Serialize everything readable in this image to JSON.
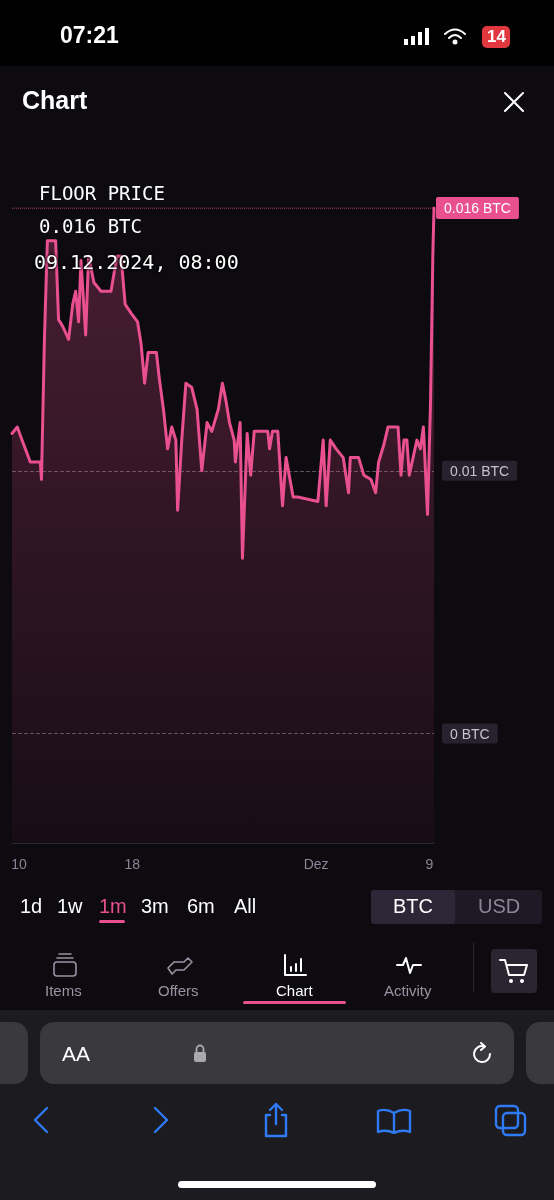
{
  "chart_data": {
    "type": "area",
    "title": "FLOOR PRICE",
    "subtitle": "0.016 BTC",
    "annotations": [
      "07:21",
      "14",
      "Chart",
      "09.12.2024, 08:00",
      "1d",
      "1w",
      "1m",
      "3m",
      "6m",
      "All",
      "BTC",
      "USD",
      "Items",
      "Offers",
      "Chart",
      "Activity",
      "AA"
    ],
    "x": [
      "2024-11-09T12:00",
      "2024-11-09T21:00",
      "2024-11-10T05:00",
      "2024-11-10T19:00",
      "2024-11-11T12:00",
      "2024-11-11T14:00",
      "2024-11-11T19:00",
      "2024-11-12T00:00",
      "2024-11-12T14:00",
      "2024-11-12T19:00",
      "2024-11-13T02:00",
      "2024-11-13T12:00",
      "2024-11-13T19:00",
      "2024-11-14T00:00",
      "2024-11-14T05:00",
      "2024-11-14T09:00",
      "2024-11-14T17:00",
      "2024-11-14T22:00",
      "2024-11-15T07:00",
      "2024-11-15T19:00",
      "2024-11-16T12:00",
      "2024-11-16T22:00",
      "2024-11-17T05:00",
      "2024-11-17T12:00",
      "2024-11-17T22:00",
      "2024-11-18T09:00",
      "2024-11-18T15:00",
      "2024-11-18T21:00",
      "2024-11-19T03:00",
      "2024-11-19T17:00",
      "2024-11-19T22:00",
      "2024-11-20T05:00",
      "2024-11-20T12:00",
      "2024-11-20T19:00",
      "2024-11-21T02:00",
      "2024-11-21T05:00",
      "2024-11-21T12:00",
      "2024-11-21T19:00",
      "2024-11-22T05:00",
      "2024-11-22T14:00",
      "2024-11-22T22:00",
      "2024-11-23T07:00",
      "2024-11-23T15:00",
      "2024-11-24T02:00",
      "2024-11-24T09:00",
      "2024-11-24T15:00",
      "2024-11-24T21:00",
      "2024-11-25T05:00",
      "2024-11-25T07:00",
      "2024-11-25T15:00",
      "2024-11-25T19:00",
      "2024-11-26T03:00",
      "2024-11-26T09:00",
      "2024-11-26T15:00",
      "2024-11-27T14:00",
      "2024-11-27T17:00",
      "2024-11-27T22:00",
      "2024-11-28T07:00",
      "2024-11-28T15:00",
      "2024-11-28T21:00",
      "2024-11-29T09:00",
      "2024-11-29T17:00",
      "2024-12-01T03:00",
      "2024-12-01T12:00",
      "2024-12-01T17:00",
      "2024-12-02T00:00",
      "2024-12-02T10:00",
      "2024-12-02T22:00",
      "2024-12-03T07:00",
      "2024-12-03T10:00",
      "2024-12-04T00:00",
      "2024-12-04T09:00",
      "2024-12-04T21:00",
      "2024-12-05T05:00",
      "2024-12-05T10:00",
      "2024-12-05T19:00",
      "2024-12-06T02:00",
      "2024-12-06T19:00",
      "2024-12-07T00:00",
      "2024-12-07T05:00",
      "2024-12-07T10:00",
      "2024-12-07T14:00",
      "2024-12-08T03:00",
      "2024-12-08T09:00",
      "2024-12-08T14:00",
      "2024-12-08T21:00",
      "2024-12-09T02:00",
      "2024-12-09T05:00",
      "2024-12-09T06:00",
      "2024-12-09T08:00"
    ],
    "values": [
      0.01085,
      0.011,
      0.0107,
      0.0102,
      0.0102,
      0.0098,
      0.013,
      0.01525,
      0.01525,
      0.01345,
      0.0133,
      0.013,
      0.0138,
      0.0141,
      0.0134,
      0.0148,
      0.0131,
      0.0149,
      0.0143,
      0.0141,
      0.0141,
      0.0149,
      0.0149,
      0.0138,
      0.0136,
      0.0134,
      0.0129,
      0.012,
      0.0127,
      0.0127,
      0.0121,
      0.0114,
      0.0105,
      0.011,
      0.0107,
      0.0091,
      0.0107,
      0.012,
      0.0119,
      0.0114,
      0.01,
      0.0111,
      0.0109,
      0.0114,
      0.012,
      0.0116,
      0.0111,
      0.0107,
      0.0102,
      0.0111,
      0.008,
      0.01085,
      0.0099,
      0.0109,
      0.0109,
      0.0105,
      0.0109,
      0.0109,
      0.0092,
      0.0103,
      0.0094,
      0.0094,
      0.0093,
      0.0107,
      0.0092,
      0.0107,
      0.0105,
      0.0103,
      0.0095,
      0.0103,
      0.0103,
      0.0099,
      0.0098,
      0.0095,
      0.0102,
      0.0106,
      0.011,
      0.011,
      0.0099,
      0.0107,
      0.0107,
      0.0099,
      0.0107,
      0.0105,
      0.011,
      0.009,
      0.0115,
      0.014,
      0.0149,
      0.016
    ],
    "color": "#e8508f",
    "xlim": [
      "2024-11-09T12:00",
      "2024-12-09T08:00"
    ],
    "xticks": [
      {
        "value": "2024-11-10",
        "label": "10"
      },
      {
        "value": "2024-11-18",
        "label": "18"
      },
      {
        "value": "2024-12-01",
        "label": "Dez"
      },
      {
        "value": "2024-12-09",
        "label": "9"
      }
    ],
    "ylim": [
      0.0015,
      0.016
    ],
    "yticks": [
      {
        "value": 0.004,
        "label": "0 BTC"
      },
      {
        "value": 0.01,
        "label": "0.01 BTC"
      }
    ],
    "grid": "y",
    "ref_lines": [
      {
        "axis": "y",
        "value": 0.016,
        "label": "0.016 BTC",
        "color": "#e8508f",
        "line_style": "dotted"
      }
    ]
  }
}
